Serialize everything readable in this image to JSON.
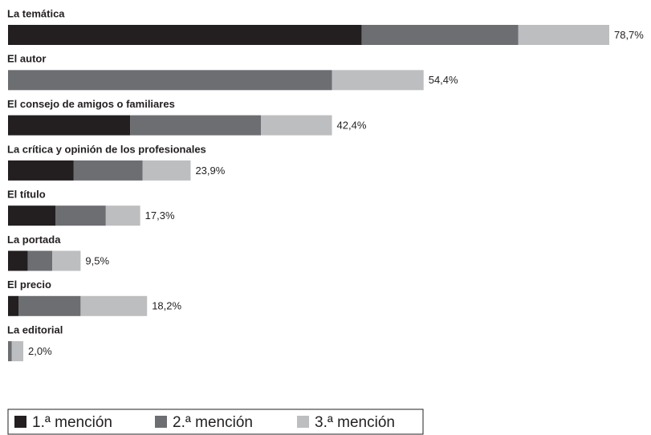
{
  "chart_data": {
    "type": "stacked-bar",
    "orientation": "horizontal",
    "categories": [
      "La temática",
      "El autor",
      "El consejo de amigos o familiares",
      "La crítica y opinión de los profesionales",
      "El título",
      "La portada",
      "El precio",
      "La editorial"
    ],
    "series": [
      {
        "name": "1.ª mención",
        "color": "#231f20",
        "values": [
          46.3,
          0,
          16.0,
          8.6,
          6.2,
          2.6,
          1.4,
          0
        ]
      },
      {
        "name": "2.ª mención",
        "color": "#6d6e71",
        "values": [
          20.5,
          42.4,
          17.1,
          9.0,
          6.6,
          3.2,
          8.1,
          0.5
        ]
      },
      {
        "name": "3.ª mención",
        "color": "#bcbec0",
        "values": [
          11.9,
          12.0,
          9.3,
          6.3,
          4.5,
          3.7,
          8.7,
          1.5
        ]
      }
    ],
    "totals": [
      78.7,
      54.4,
      42.4,
      23.9,
      17.3,
      9.5,
      18.2,
      2.0
    ],
    "total_labels": [
      "78,7%",
      "54,4%",
      "42,4%",
      "23,9%",
      "17,3%",
      "9,5%",
      "18,2%",
      "2,0%"
    ]
  }
}
